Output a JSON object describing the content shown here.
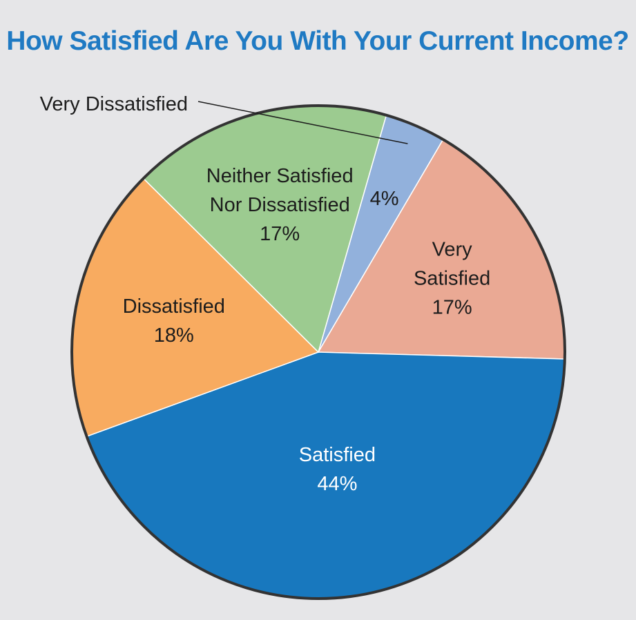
{
  "chart_data": {
    "type": "pie",
    "title": "How Satisfied Are You With Your Current Income?",
    "start_angle_deg": 16,
    "slices": [
      {
        "label": "Very Dissatisfied",
        "value": 4,
        "display": "4%",
        "color": "#92b1dc",
        "label_lines": [
          "4%"
        ],
        "callout": "Very Dissatisfied"
      },
      {
        "label": "Very Satisfied",
        "value": 17,
        "display": "17%",
        "color": "#eaa994",
        "label_lines": [
          "Very",
          "Satisfied",
          "17%"
        ]
      },
      {
        "label": "Satisfied",
        "value": 44,
        "display": "44%",
        "color": "#1878be",
        "label_lines": [
          "Satisfied",
          "44%"
        ],
        "dark": true
      },
      {
        "label": "Dissatisfied",
        "value": 18,
        "display": "18%",
        "color": "#f8ab60",
        "label_lines": [
          "Dissatisfied",
          "18%"
        ]
      },
      {
        "label": "Neither Satisfied Nor Dissatisfied",
        "value": 17,
        "display": "17%",
        "color": "#9ccb90",
        "label_lines": [
          "Neither Satisfied",
          "Nor Dissatisfied",
          "17%"
        ]
      }
    ]
  }
}
